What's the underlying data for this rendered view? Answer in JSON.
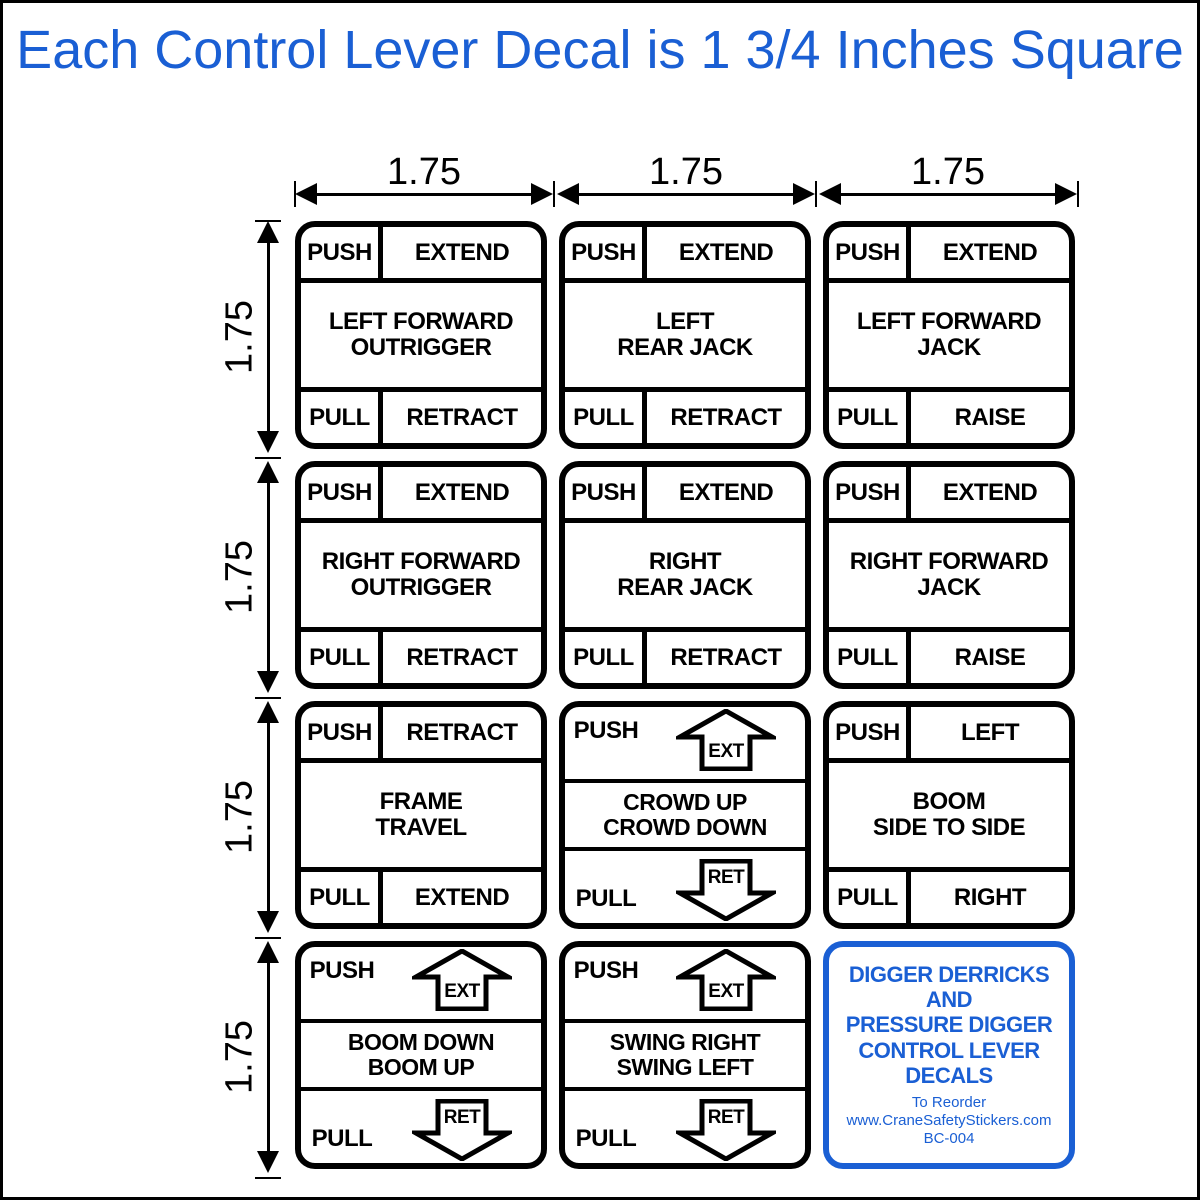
{
  "title": "Each Control Lever Decal is\n1 3/4 Inches Square",
  "dim_value": "1.75",
  "colors": {
    "blue": "#1a5fd4",
    "black": "#000000",
    "bg": "#ffffff"
  },
  "arrow_labels": {
    "up": "EXT",
    "down": "RET"
  },
  "decals": [
    [
      {
        "type": "std",
        "tl": "PUSH",
        "tr": "EXTEND",
        "mid": "LEFT FORWARD\nOUTRIGGER",
        "bl": "PULL",
        "br": "RETRACT"
      },
      {
        "type": "std",
        "tl": "PUSH",
        "tr": "EXTEND",
        "mid": "LEFT\nREAR JACK",
        "bl": "PULL",
        "br": "RETRACT"
      },
      {
        "type": "std",
        "tl": "PUSH",
        "tr": "EXTEND",
        "mid": "LEFT FORWARD\nJACK",
        "bl": "PULL",
        "br": "RAISE"
      }
    ],
    [
      {
        "type": "std",
        "tl": "PUSH",
        "tr": "EXTEND",
        "mid": "RIGHT FORWARD\nOUTRIGGER",
        "bl": "PULL",
        "br": "RETRACT"
      },
      {
        "type": "std",
        "tl": "PUSH",
        "tr": "EXTEND",
        "mid": "RIGHT\nREAR JACK",
        "bl": "PULL",
        "br": "RETRACT"
      },
      {
        "type": "std",
        "tl": "PUSH",
        "tr": "EXTEND",
        "mid": "RIGHT FORWARD\nJACK",
        "bl": "PULL",
        "br": "RAISE"
      }
    ],
    [
      {
        "type": "std",
        "tl": "PUSH",
        "tr": "RETRACT",
        "mid": "FRAME\nTRAVEL",
        "bl": "PULL",
        "br": "EXTEND"
      },
      {
        "type": "arrow",
        "tl": "PUSH",
        "mid": "CROWD UP\nCROWD DOWN",
        "bl": "PULL"
      },
      {
        "type": "std",
        "tl": "PUSH",
        "tr": "LEFT",
        "mid": "BOOM\nSIDE TO SIDE",
        "bl": "PULL",
        "br": "RIGHT"
      }
    ],
    [
      {
        "type": "arrow",
        "tl": "PUSH",
        "mid": "BOOM DOWN\nBOOM UP",
        "bl": "PULL"
      },
      {
        "type": "arrow",
        "tl": "PUSH",
        "mid": "SWING RIGHT\nSWING LEFT",
        "bl": "PULL"
      },
      {
        "type": "blue",
        "main": "DIGGER DERRICKS\nAND\nPRESSURE DIGGER\nCONTROL LEVER\nDECALS",
        "sub1": "To Reorder",
        "sub2": "www.CraneSafetyStickers.com",
        "sub3": "BC-004"
      }
    ]
  ]
}
